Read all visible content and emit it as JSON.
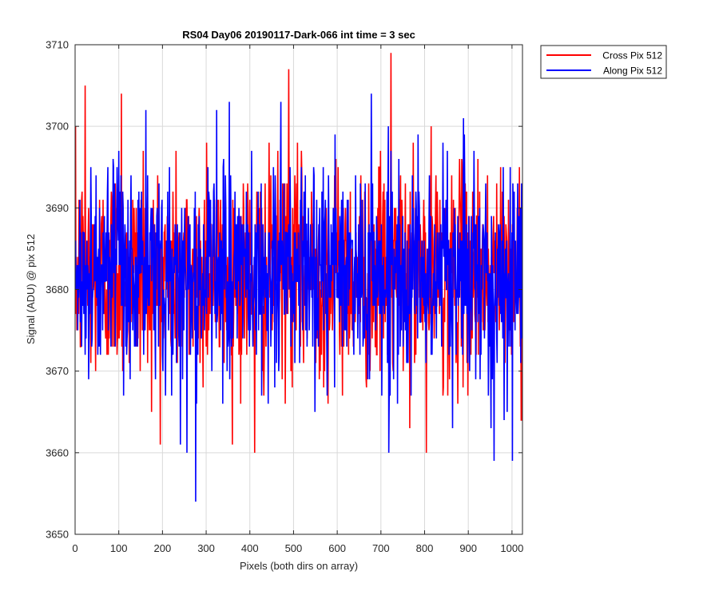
{
  "chart_data": {
    "type": "line",
    "title": "RS04 Day06 20190117-Dark-066 int time = 3 sec",
    "xlabel": "Pixels (both dirs on array)",
    "ylabel": "Signal (ADU) @ pix 512",
    "xlim": [
      0,
      1024
    ],
    "ylim": [
      3650,
      3710
    ],
    "xticks": [
      0,
      100,
      200,
      300,
      400,
      500,
      600,
      700,
      800,
      900,
      1000
    ],
    "yticks": [
      3650,
      3660,
      3670,
      3680,
      3690,
      3700,
      3710
    ],
    "grid": true,
    "legend_position": "outside-top-right",
    "colors": {
      "cross": "#ff0000",
      "along": "#0000ff",
      "grid": "#d9d9d9",
      "axis": "#262626"
    },
    "series": [
      {
        "name": "Cross Pix 512",
        "color": "#ff0000",
        "mean": 3682,
        "n": 1024,
        "noise_seed": 12345,
        "noise_sd": 6.5,
        "clip": [
          3661,
          3709
        ],
        "extremes": [
          [
            22,
            3705
          ],
          [
            105,
            3704
          ],
          [
            410,
            3660
          ],
          [
            488,
            3707
          ],
          [
            722,
            3709
          ],
          [
            803,
            3660
          ],
          [
            1020,
            3664
          ],
          [
            155,
            3697
          ],
          [
            300,
            3698
          ]
        ]
      },
      {
        "name": "Along Pix 512",
        "color": "#0000ff",
        "mean": 3682,
        "n": 1024,
        "noise_seed": 67890,
        "noise_sd": 6.5,
        "clip": [
          3660,
          3704
        ],
        "extremes": [
          [
            275,
            3654
          ],
          [
            255,
            3660
          ],
          [
            958,
            3659
          ],
          [
            1000,
            3659
          ],
          [
            352,
            3703
          ],
          [
            888,
            3701
          ],
          [
            470,
            3703
          ],
          [
            240,
            3661
          ]
        ]
      }
    ]
  }
}
